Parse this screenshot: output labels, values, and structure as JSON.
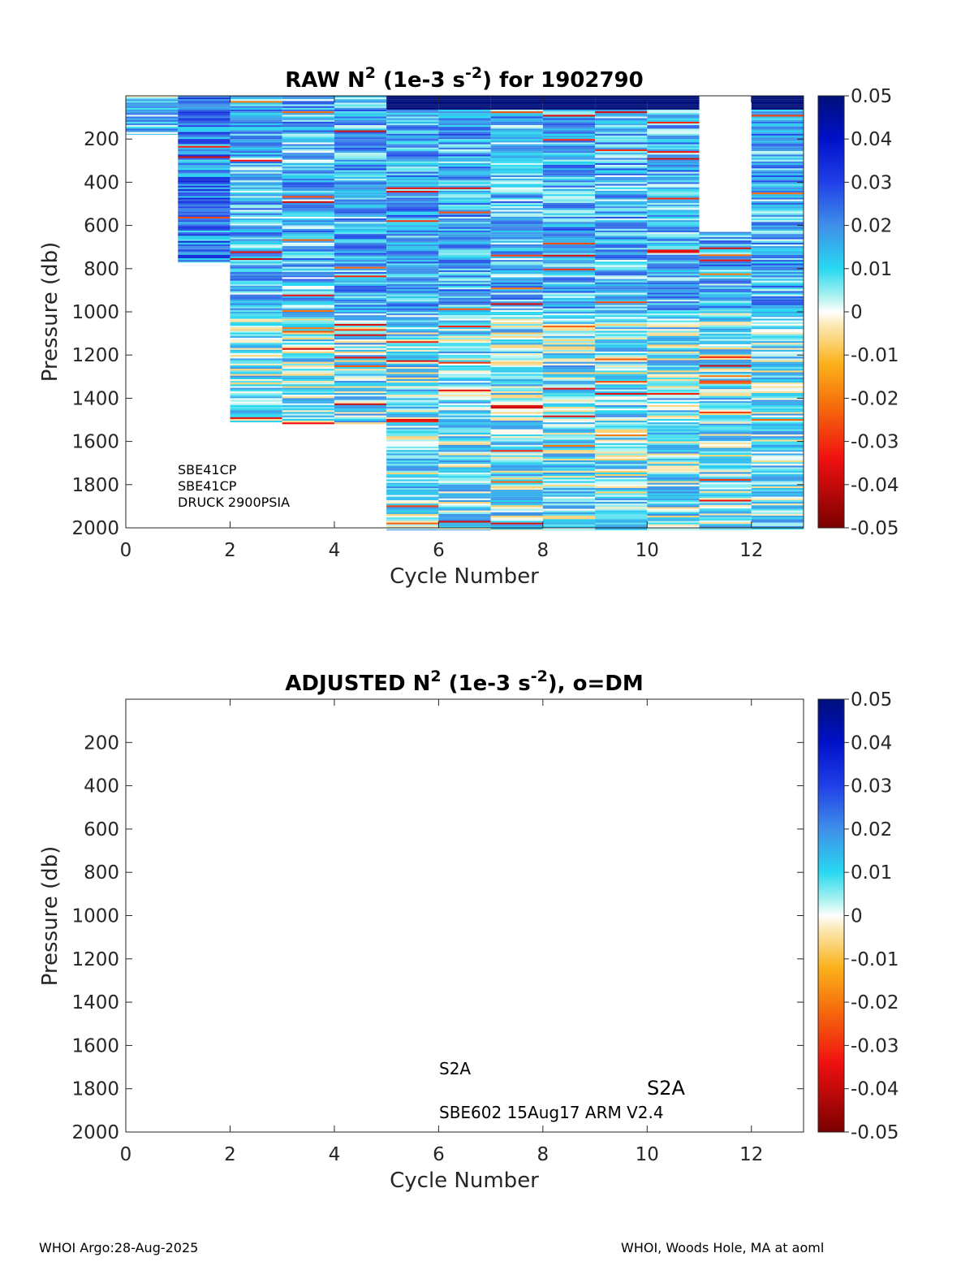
{
  "chart_data": [
    {
      "type": "heatmap",
      "title_parts": {
        "a": "RAW N",
        "sup1": "2",
        "b": " (1e-3 s",
        "sup2": "-2",
        "c": ") for 1902790"
      },
      "xlabel": "Cycle Number",
      "ylabel": "Pressure (db)",
      "xlim": [
        0,
        13
      ],
      "ylim": [
        0,
        2000
      ],
      "y_reversed": true,
      "x_ticks": [
        0,
        2,
        4,
        6,
        8,
        10,
        12
      ],
      "y_ticks": [
        200,
        400,
        600,
        800,
        1000,
        1200,
        1400,
        1600,
        1800,
        2000
      ],
      "colorbar": {
        "min": -0.05,
        "max": 0.05,
        "ticks": [
          "0.05",
          "0.04",
          "0.03",
          "0.02",
          "0.01",
          "0",
          "-0.01",
          "-0.02",
          "-0.03",
          "-0.04",
          "-0.05"
        ]
      },
      "columns": [
        {
          "cycle": 0,
          "pmin": 0,
          "pmax": 180,
          "mean": 0.012
        },
        {
          "cycle": 1,
          "pmin": 0,
          "pmax": 770,
          "mean": 0.022
        },
        {
          "cycle": 2,
          "pmin": 0,
          "pmax": 1520,
          "mean": 0.014
        },
        {
          "cycle": 3,
          "pmin": 0,
          "pmax": 1520,
          "mean": 0.014
        },
        {
          "cycle": 4,
          "pmin": 0,
          "pmax": 1520,
          "mean": 0.016
        },
        {
          "cycle": 5,
          "pmin": 0,
          "pmax": 2010,
          "mean": 0.016
        },
        {
          "cycle": 6,
          "pmin": 0,
          "pmax": 2010,
          "mean": 0.016
        },
        {
          "cycle": 7,
          "pmin": 0,
          "pmax": 2010,
          "mean": 0.014
        },
        {
          "cycle": 8,
          "pmin": 0,
          "pmax": 2010,
          "mean": 0.016
        },
        {
          "cycle": 9,
          "pmin": 0,
          "pmax": 2010,
          "mean": 0.014
        },
        {
          "cycle": 10,
          "pmin": 0,
          "pmax": 2010,
          "mean": 0.015
        },
        {
          "cycle": 11,
          "pmin": 630,
          "pmax": 2010,
          "mean": 0.014
        },
        {
          "cycle": 12,
          "pmin": 0,
          "pmax": 2010,
          "mean": 0.015
        }
      ],
      "annotations": [
        "SBE41CP",
        "SBE41CP",
        "DRUCK 2900PSIA"
      ]
    },
    {
      "type": "heatmap",
      "title_parts": {
        "a": "ADJUSTED N",
        "sup1": "2",
        "b": " (1e-3 s",
        "sup2": "-2",
        "c": "), o=DM"
      },
      "xlabel": "Cycle Number",
      "ylabel": "Pressure (db)",
      "xlim": [
        0,
        13
      ],
      "ylim": [
        0,
        2000
      ],
      "y_reversed": true,
      "x_ticks": [
        0,
        2,
        4,
        6,
        8,
        10,
        12
      ],
      "y_ticks": [
        200,
        400,
        600,
        800,
        1000,
        1200,
        1400,
        1600,
        1800,
        2000
      ],
      "colorbar": {
        "min": -0.05,
        "max": 0.05,
        "ticks": [
          "0.05",
          "0.04",
          "0.03",
          "0.02",
          "0.01",
          "0",
          "-0.01",
          "-0.02",
          "-0.03",
          "-0.04",
          "-0.05"
        ]
      },
      "columns": [],
      "annotations": [
        "S2A",
        "S2A",
        "SBE602 15Aug17 ARM V2.4"
      ]
    }
  ],
  "footer": {
    "left": "WHOI Argo:28-Aug-2025",
    "right": "WHOI, Woods Hole, MA at aoml"
  }
}
